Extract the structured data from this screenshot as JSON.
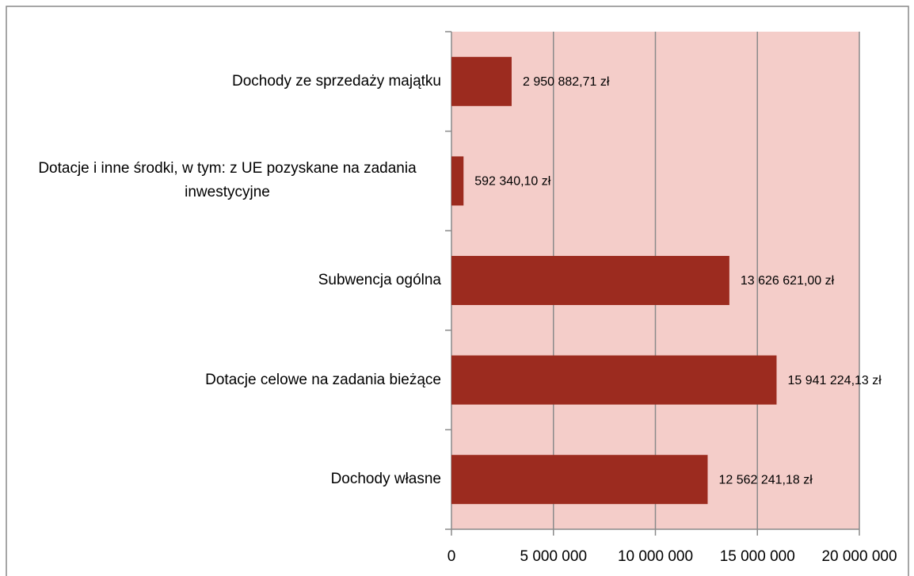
{
  "chart_data": {
    "type": "barh",
    "categories": [
      "Dochody ze sprzedaży majątku",
      "Dotacje i inne środki, w tym:  z UE pozyskane na zadania inwestycyjne",
      "Subwencja ogólna",
      "Dotacje celowe na zadania bieżące",
      "Dochody własne"
    ],
    "values": [
      2950882.71,
      592340.1,
      13626621.0,
      15941224.13,
      12562241.18
    ],
    "value_labels": [
      "2 950 882,71 zł",
      "592 340,10 zł",
      "13 626 621,00 zł",
      "15 941 224,13 zł",
      "12 562 241,18 zł"
    ],
    "color": "#9c2b1f",
    "plot_background": "#f4cdc9",
    "xlim": [
      0,
      20000000
    ],
    "xticks": [
      0,
      {
        "value": 5000000,
        "label": "5 000 000"
      },
      {
        "value": 10000000,
        "label": "10 000 000"
      },
      {
        "value": 15000000,
        "label": "15 000 000"
      },
      {
        "value": 20000000,
        "label": "20 000 000"
      }
    ],
    "grid": true
  }
}
